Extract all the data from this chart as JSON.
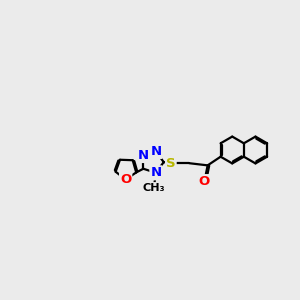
{
  "bg_color": "#ebebeb",
  "bond_color": "#000000",
  "N_color": "#0000ff",
  "O_color": "#ff0000",
  "S_color": "#b8b800",
  "line_width": 1.6,
  "dbo": 0.055,
  "fs": 9.5,
  "xlim": [
    -5.8,
    4.5
  ],
  "ylim": [
    -1.8,
    2.2
  ]
}
